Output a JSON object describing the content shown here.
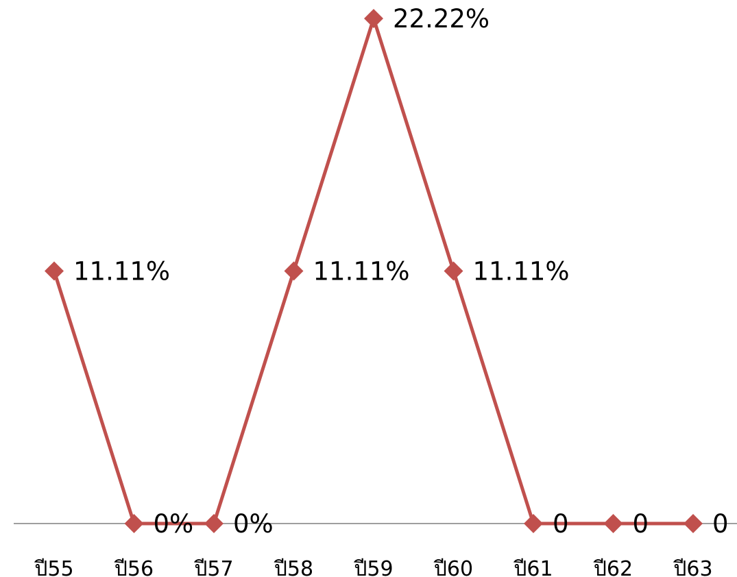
{
  "chart_data": {
    "type": "line",
    "categories": [
      "ปี55",
      "ปี56",
      "ปี57",
      "ปี58",
      "ปี59",
      "ปี60",
      "ปี61",
      "ปี62",
      "ปี63"
    ],
    "series": [
      {
        "values": [
          11.11,
          0,
          0,
          11.11,
          22.22,
          11.11,
          0,
          0,
          0
        ],
        "data_labels": [
          "11.11%",
          "0%",
          "0%",
          "11.11%",
          "22.22%",
          "11.11%",
          "0",
          "0",
          "0"
        ]
      }
    ],
    "title": "",
    "xlabel": "",
    "ylabel": "",
    "ylim": [
      0,
      22.22
    ],
    "grid": false,
    "legend": "none",
    "line_color": "#c0504d",
    "axis_color": "#7f7f7f",
    "marker": "diamond"
  }
}
